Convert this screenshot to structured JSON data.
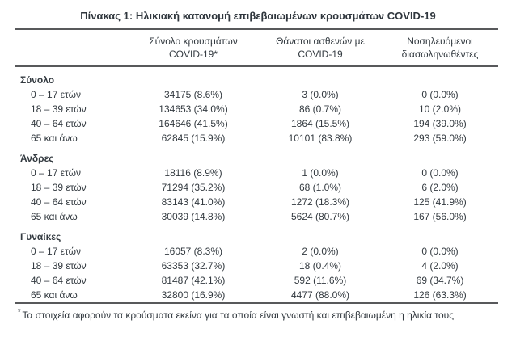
{
  "title": "Πίνακας 1: Ηλικιακή κατανομή επιβεβαιωμένων κρουσμάτων COVID-19",
  "columns": [
    {
      "line1": "Σύνολο κρουσμάτων",
      "line2": "COVID-19*"
    },
    {
      "line1": "Θάνατοι ασθενών με",
      "line2": "COVID-19"
    },
    {
      "line1": "Νοσηλευόμενοι",
      "line2": "διασωληνωθέντες"
    }
  ],
  "groups": [
    {
      "label": "Σύνολο",
      "rows": [
        {
          "age": "0 – 17 ετών",
          "cases": "34175 (8.6%)",
          "deaths": "3 (0.0%)",
          "intubated": "0 (0.0%)"
        },
        {
          "age": "18 – 39 ετών",
          "cases": "134653 (34.0%)",
          "deaths": "86 (0.7%)",
          "intubated": "10 (2.0%)"
        },
        {
          "age": "40 – 64 ετών",
          "cases": "164646 (41.5%)",
          "deaths": "1864 (15.5%)",
          "intubated": "194 (39.0%)"
        },
        {
          "age": "65 και άνω",
          "cases": "62845 (15.9%)",
          "deaths": "10101 (83.8%)",
          "intubated": "293 (59.0%)"
        }
      ]
    },
    {
      "label": "Άνδρες",
      "rows": [
        {
          "age": "0 – 17 ετών",
          "cases": "18116 (8.9%)",
          "deaths": "1 (0.0%)",
          "intubated": "0 (0.0%)"
        },
        {
          "age": "18 – 39 ετών",
          "cases": "71294 (35.2%)",
          "deaths": "68 (1.0%)",
          "intubated": "6 (2.0%)"
        },
        {
          "age": "40 – 64 ετών",
          "cases": "83143 (41.0%)",
          "deaths": "1272 (18.3%)",
          "intubated": "125 (41.9%)"
        },
        {
          "age": "65 και άνω",
          "cases": "30039 (14.8%)",
          "deaths": "5624 (80.7%)",
          "intubated": "167 (56.0%)"
        }
      ]
    },
    {
      "label": "Γυναίκες",
      "rows": [
        {
          "age": "0 – 17 ετών",
          "cases": "16057 (8.3%)",
          "deaths": "2 (0.0%)",
          "intubated": "0 (0.0%)"
        },
        {
          "age": "18 – 39 ετών",
          "cases": "63353 (32.7%)",
          "deaths": "18 (0.4%)",
          "intubated": "4 (2.0%)"
        },
        {
          "age": "40 – 64 ετών",
          "cases": "81487 (42.1%)",
          "deaths": "592 (11.6%)",
          "intubated": "69 (34.7%)"
        },
        {
          "age": "65 και άνω",
          "cases": "32800 (16.9%)",
          "deaths": "4477 (88.0%)",
          "intubated": "126 (63.3%)"
        }
      ]
    }
  ],
  "footnote_marker": "*",
  "footnote": "Τα στοιχεία αφορούν τα κρούσματα εκείνα για τα οποία είναι γνωστή και επιβεβαιωμένη η ηλικία τους",
  "colors": {
    "text": "#333a40",
    "rule": "#58595b",
    "background": "#ffffff"
  }
}
